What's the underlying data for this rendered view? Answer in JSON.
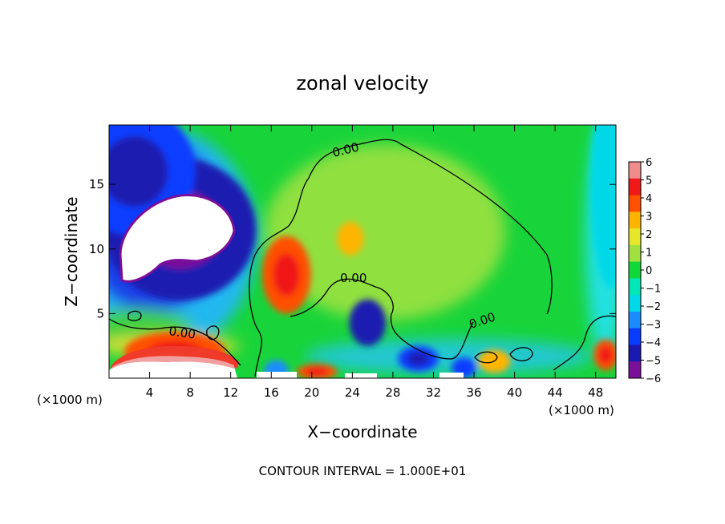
{
  "chart_data": {
    "type": "heatmap",
    "title": "zonal velocity",
    "xlabel": "X−coordinate",
    "ylabel": "Z−coordinate",
    "x_unit": "(×1000 m)",
    "x_unit_right": "(×1000 m)",
    "footer": "CONTOUR INTERVAL = 1.000E+01",
    "xlim": [
      0,
      50
    ],
    "ylim": [
      0,
      19.6
    ],
    "x_ticks": [
      "4",
      "8",
      "12",
      "16",
      "20",
      "24",
      "28",
      "32",
      "36",
      "40",
      "44",
      "48"
    ],
    "y_ticks": [
      "5",
      "10",
      "15"
    ],
    "colorbar": {
      "min": -6,
      "max": 6,
      "ticks": [
        "6",
        "5",
        "4",
        "3",
        "2",
        "1",
        "0",
        "−1",
        "−2",
        "−3",
        "−4",
        "−5",
        "−6"
      ]
    },
    "contour_labels": [
      "0.00",
      "0.00",
      "0.00",
      "0.00"
    ],
    "features": [
      {
        "x": 17.5,
        "z": 8.0,
        "value": 4.2,
        "rx": 2.4,
        "rz": 3.0
      },
      {
        "x": 23.8,
        "z": 10.8,
        "value": 2.6,
        "rx": 1.3,
        "rz": 1.3
      },
      {
        "x": 25.5,
        "z": 4.3,
        "value": -4.6,
        "rx": 1.8,
        "rz": 1.8
      },
      {
        "x": 7.0,
        "z": 11.5,
        "value": -5.5,
        "rx": 7.5,
        "rz": 5.5
      },
      {
        "x": 2.5,
        "z": 16.0,
        "value": -4.0,
        "rx": 6.0,
        "rz": 5.0
      },
      {
        "x": 16.5,
        "z": 0.6,
        "value": -3.5,
        "rx": 1.2,
        "rz": 0.8
      },
      {
        "x": 30.5,
        "z": 1.5,
        "value": -4.0,
        "rx": 2.0,
        "rz": 1.0
      },
      {
        "x": 35.0,
        "z": 0.8,
        "value": -3.6,
        "rx": 1.2,
        "rz": 0.8
      },
      {
        "x": 6.5,
        "z": 2.0,
        "value": 4.2,
        "rx": 5.0,
        "rz": 1.6
      },
      {
        "x": 20.5,
        "z": 0.5,
        "value": 4.0,
        "rx": 2.0,
        "rz": 0.6
      },
      {
        "x": 38.0,
        "z": 1.3,
        "value": 2.8,
        "rx": 1.6,
        "rz": 0.9
      },
      {
        "x": 49.0,
        "z": 1.8,
        "value": 4.0,
        "rx": 1.2,
        "rz": 1.2
      },
      {
        "x": 49.5,
        "z": 15.0,
        "value": -2.0,
        "rx": 2.0,
        "rz": 8.0
      }
    ],
    "white_regions": [
      "upper-left blob",
      "bottom-left",
      "bottom strip"
    ],
    "colormap": [
      "#7a0f9a",
      "#1a1ab0",
      "#0a3cff",
      "#1a8cff",
      "#00d8e8",
      "#00e6b4",
      "#10d838",
      "#a0e040",
      "#e6e62a",
      "#ffb400",
      "#ff5000",
      "#f01818",
      "#f08c8c"
    ]
  }
}
